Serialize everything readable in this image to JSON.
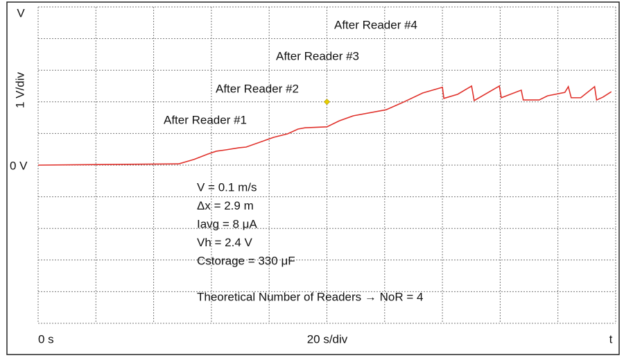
{
  "chart_data": {
    "type": "line",
    "y_axis_end_label": "V",
    "y_axis_label": "1 V/div",
    "x_axis_label": "20 s/div",
    "x_axis_end_label": "t",
    "xlim": [
      0,
      200
    ],
    "ylim": [
      -5,
      5
    ],
    "xticks": [
      {
        "value": 0,
        "label": "0 s"
      }
    ],
    "yticks": [
      {
        "value": 0,
        "label": "0 V"
      }
    ],
    "grid": true,
    "xgrid": [
      0,
      20,
      40,
      60,
      80,
      100,
      120,
      140,
      160,
      180,
      200
    ],
    "ygrid": [
      -5,
      -4,
      -3,
      -2,
      -1,
      0,
      1,
      2,
      3,
      4,
      5
    ],
    "series": [
      {
        "color": "#e0302a",
        "x": [
          0,
          48.7,
          54,
          58.8,
          61.7,
          64.8,
          69.6,
          72,
          81.6,
          86.4,
          90,
          92.4,
          100,
          104.3,
          109.2,
          120.5,
          126,
          133.2,
          140,
          140.5,
          145.3,
          150.1,
          151,
          159.7,
          160.4,
          167.3,
          168,
          173.5,
          176.4,
          182.4,
          183.6,
          184.6,
          187.9,
          192.7,
          193.4,
          195.6,
          198.5
        ],
        "values": [
          0,
          0.04,
          0.18,
          0.35,
          0.44,
          0.48,
          0.55,
          0.57,
          0.88,
          0.99,
          1.14,
          1.18,
          1.21,
          1.4,
          1.56,
          1.75,
          1.97,
          2.28,
          2.46,
          2.11,
          2.24,
          2.5,
          2.04,
          2.5,
          2.13,
          2.37,
          2.06,
          2.06,
          2.19,
          2.3,
          2.48,
          2.13,
          2.13,
          2.48,
          2.06,
          2.15,
          2.32
        ]
      }
    ],
    "marker": {
      "x": 100,
      "y": 2,
      "color": "#e8d000"
    },
    "annotations": [
      "After Reader #1",
      "After Reader #2",
      "After Reader #3",
      "After Reader #4"
    ],
    "parameters": [
      "V = 0.1 m/s",
      "Δx = 2.9 m",
      "Iavg = 8 μA",
      "Vh = 2.4 V",
      "Cstorage = 330 μF"
    ],
    "note": "Theoretical Number of Readers → NoR = 4"
  }
}
